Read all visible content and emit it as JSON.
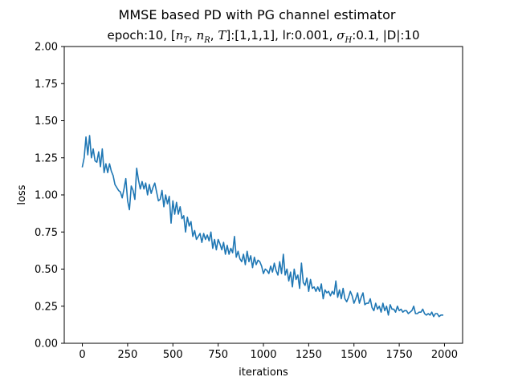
{
  "chart_data": {
    "type": "line",
    "title": "MMSE based PD with PG channel estimator",
    "subtitle": {
      "prefix": "epoch:10, [",
      "nT_base": "n",
      "nT_sub": "T",
      "sep1": ", ",
      "nR_base": "n",
      "nR_sub": "R",
      "sep2": ", ",
      "T": "T",
      "mid": "]:[1,1,1], lr:0.001, ",
      "sigma_base": "σ",
      "sigma_sub": "H",
      "suffix": ":0.1, |D|:10"
    },
    "xlabel": "iterations",
    "ylabel": "loss",
    "xlim": [
      -100,
      2100
    ],
    "ylim": [
      0,
      2.0
    ],
    "xticks": [
      0,
      250,
      500,
      750,
      1000,
      1250,
      1500,
      1750,
      2000
    ],
    "yticks": [
      0.0,
      0.25,
      0.5,
      0.75,
      1.0,
      1.25,
      1.5,
      1.75,
      2.0
    ],
    "xtick_labels": [
      "0",
      "250",
      "500",
      "750",
      "1000",
      "1250",
      "1500",
      "1750",
      "2000"
    ],
    "ytick_labels": [
      "0.00",
      "0.25",
      "0.50",
      "0.75",
      "1.00",
      "1.25",
      "1.50",
      "1.75",
      "2.00"
    ],
    "grid": false,
    "series": [
      {
        "color": "#1f77b4",
        "x": [
          0,
          10,
          20,
          30,
          40,
          50,
          60,
          70,
          80,
          90,
          100,
          110,
          120,
          130,
          140,
          150,
          160,
          170,
          180,
          190,
          200,
          210,
          220,
          230,
          240,
          250,
          260,
          270,
          280,
          290,
          300,
          310,
          320,
          330,
          340,
          350,
          360,
          370,
          380,
          390,
          400,
          410,
          420,
          430,
          440,
          450,
          460,
          470,
          480,
          490,
          500,
          510,
          520,
          530,
          540,
          550,
          560,
          570,
          580,
          590,
          600,
          610,
          620,
          630,
          640,
          650,
          660,
          670,
          680,
          690,
          700,
          710,
          720,
          730,
          740,
          750,
          760,
          770,
          780,
          790,
          800,
          810,
          820,
          830,
          840,
          850,
          860,
          870,
          880,
          890,
          900,
          910,
          920,
          930,
          940,
          950,
          960,
          970,
          980,
          990,
          1000,
          1010,
          1020,
          1030,
          1040,
          1050,
          1060,
          1070,
          1080,
          1090,
          1100,
          1110,
          1120,
          1130,
          1140,
          1150,
          1160,
          1170,
          1180,
          1190,
          1200,
          1210,
          1220,
          1230,
          1240,
          1250,
          1260,
          1270,
          1280,
          1290,
          1300,
          1310,
          1320,
          1330,
          1340,
          1350,
          1360,
          1370,
          1380,
          1390,
          1400,
          1410,
          1420,
          1430,
          1440,
          1450,
          1460,
          1470,
          1480,
          1490,
          1500,
          1510,
          1520,
          1530,
          1540,
          1550,
          1560,
          1570,
          1580,
          1590,
          1600,
          1610,
          1620,
          1630,
          1640,
          1650,
          1660,
          1670,
          1680,
          1690,
          1700,
          1710,
          1720,
          1730,
          1740,
          1750,
          1760,
          1770,
          1780,
          1790,
          1800,
          1810,
          1820,
          1830,
          1840,
          1850,
          1860,
          1870,
          1880,
          1890,
          1900,
          1910,
          1920,
          1930,
          1940,
          1950,
          1960,
          1970,
          1980,
          1990
        ],
        "values": [
          1.19,
          1.25,
          1.39,
          1.27,
          1.4,
          1.25,
          1.31,
          1.23,
          1.22,
          1.29,
          1.19,
          1.31,
          1.15,
          1.21,
          1.15,
          1.21,
          1.16,
          1.13,
          1.07,
          1.05,
          1.03,
          1.02,
          0.98,
          1.04,
          1.11,
          0.96,
          0.9,
          1.06,
          1.03,
          0.97,
          1.18,
          1.1,
          1.04,
          1.09,
          1.04,
          1.08,
          1.0,
          1.07,
          1.01,
          1.05,
          1.08,
          1.02,
          0.96,
          0.97,
          1.03,
          0.92,
          1.0,
          0.94,
          0.99,
          0.81,
          0.96,
          0.87,
          0.95,
          0.87,
          0.92,
          0.84,
          0.86,
          0.75,
          0.85,
          0.79,
          0.82,
          0.72,
          0.76,
          0.7,
          0.72,
          0.74,
          0.68,
          0.74,
          0.7,
          0.73,
          0.69,
          0.75,
          0.64,
          0.7,
          0.63,
          0.7,
          0.67,
          0.63,
          0.68,
          0.6,
          0.66,
          0.6,
          0.64,
          0.61,
          0.72,
          0.58,
          0.62,
          0.57,
          0.55,
          0.6,
          0.53,
          0.62,
          0.55,
          0.59,
          0.51,
          0.58,
          0.53,
          0.56,
          0.55,
          0.52,
          0.47,
          0.5,
          0.49,
          0.47,
          0.52,
          0.48,
          0.54,
          0.49,
          0.46,
          0.55,
          0.47,
          0.6,
          0.46,
          0.5,
          0.42,
          0.48,
          0.38,
          0.5,
          0.43,
          0.46,
          0.37,
          0.54,
          0.41,
          0.39,
          0.44,
          0.35,
          0.43,
          0.37,
          0.38,
          0.35,
          0.38,
          0.35,
          0.4,
          0.3,
          0.36,
          0.34,
          0.35,
          0.32,
          0.35,
          0.33,
          0.42,
          0.31,
          0.36,
          0.3,
          0.37,
          0.3,
          0.28,
          0.31,
          0.35,
          0.32,
          0.27,
          0.3,
          0.34,
          0.27,
          0.31,
          0.34,
          0.26,
          0.27,
          0.27,
          0.3,
          0.24,
          0.22,
          0.27,
          0.23,
          0.25,
          0.21,
          0.27,
          0.22,
          0.25,
          0.19,
          0.26,
          0.23,
          0.23,
          0.21,
          0.25,
          0.22,
          0.23,
          0.21,
          0.22,
          0.22,
          0.2,
          0.21,
          0.22,
          0.25,
          0.2,
          0.2,
          0.21,
          0.21,
          0.23,
          0.2,
          0.19,
          0.2,
          0.19,
          0.21,
          0.18,
          0.2,
          0.2,
          0.18,
          0.19,
          0.19
        ]
      }
    ]
  }
}
